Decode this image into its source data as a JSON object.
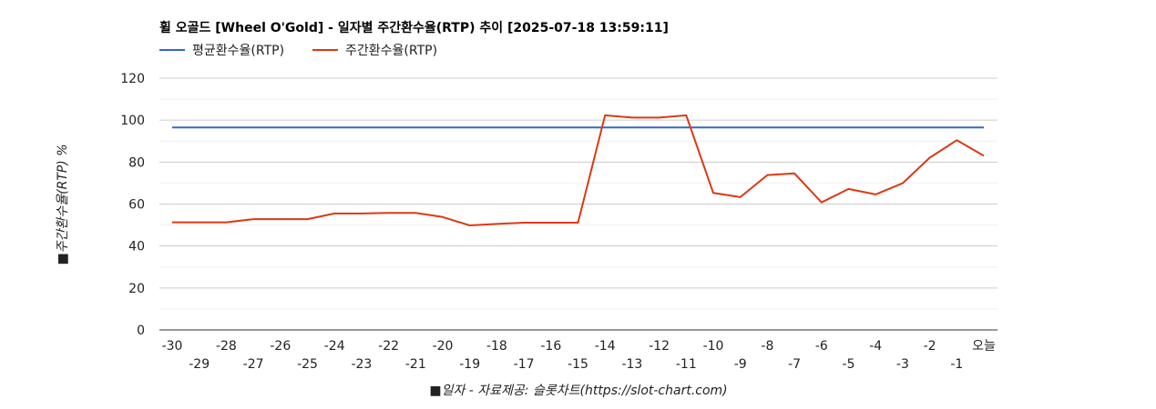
{
  "chart_data": {
    "type": "line",
    "title": "휠 오골드 [Wheel O'Gold] - 일자별 주간환수율(RTP) 추이 [2025-07-18 13:59:11]",
    "xlabel": "■일자 - 자료제공: 슬롯차트(https://slot-chart.com)",
    "ylabel": "■주간환수율(RTP) %",
    "ylim": [
      0,
      120
    ],
    "yticks": [
      "0",
      "20",
      "40",
      "60",
      "80",
      "100",
      "120"
    ],
    "x": [
      "-30",
      "-29",
      "-28",
      "-27",
      "-26",
      "-25",
      "-24",
      "-23",
      "-22",
      "-21",
      "-20",
      "-19",
      "-18",
      "-17",
      "-16",
      "-15",
      "-14",
      "-13",
      "-12",
      "-11",
      "-10",
      "-9",
      "-8",
      "-7",
      "-6",
      "-5",
      "-4",
      "-3",
      "-2",
      "-1",
      "오늘"
    ],
    "grid": true,
    "legend_position": "top-left",
    "series": [
      {
        "name": "평균환수율(RTP)",
        "color": "#3366cc",
        "values": [
          96.5,
          96.5,
          96.5,
          96.5,
          96.5,
          96.5,
          96.5,
          96.5,
          96.5,
          96.5,
          96.5,
          96.5,
          96.5,
          96.5,
          96.5,
          96.5,
          96.5,
          96.5,
          96.5,
          96.5,
          96.5,
          96.5,
          96.5,
          96.5,
          96.5,
          96.5,
          96.5,
          96.5,
          96.5,
          96.5,
          96.5
        ]
      },
      {
        "name": "주간환수율(RTP)",
        "color": "#dc3912",
        "values": [
          51.3,
          51.3,
          51.3,
          52.8,
          52.8,
          52.8,
          55.5,
          55.5,
          55.8,
          55.8,
          53.8,
          49.8,
          50.5,
          51.1,
          51.1,
          51.1,
          102.3,
          101.2,
          101.2,
          102.3,
          65.3,
          63.3,
          73.8,
          74.6,
          60.8,
          67.2,
          64.6,
          69.9,
          82.1,
          90.4,
          83.0
        ]
      }
    ]
  }
}
